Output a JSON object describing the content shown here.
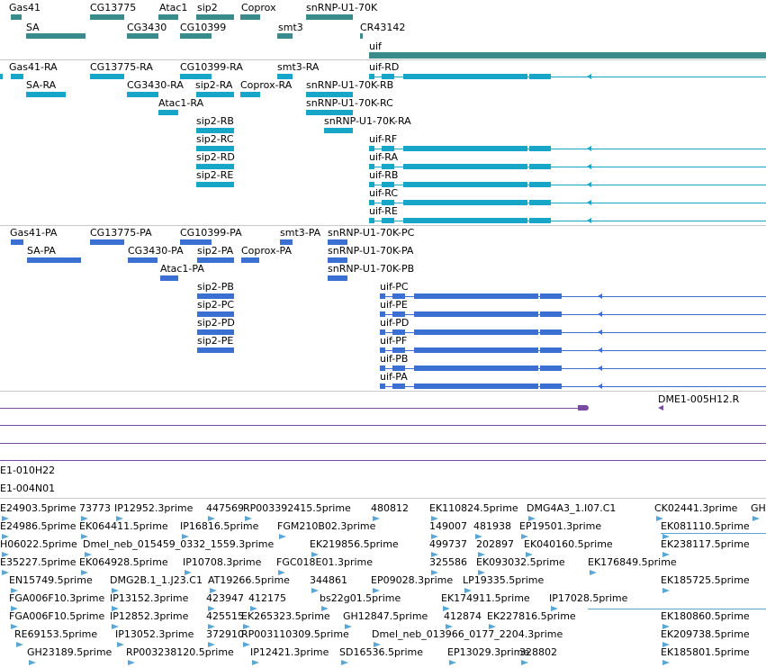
{
  "colors": {
    "gene": "#3a8c8c",
    "mrna": "#17a6c7",
    "protein": "#3b6fd1",
    "clone": "#7a4aa0",
    "est": "#5aa7d6",
    "separator": "#c8c8c8",
    "text": "#000000"
  },
  "genes": {
    "labels": [
      "Gas41",
      "CG13775",
      "Atac1",
      "sip2",
      "Coprox",
      "snRNP-U1-70K",
      "SA",
      "CG3430",
      "CG10399",
      "smt3",
      "CR43142",
      "uif"
    ]
  },
  "transcripts": {
    "labels": [
      "Gas41-RA",
      "CG13775-RA",
      "CG10399-RA",
      "smt3-RA",
      "uif-RD",
      "SA-RA",
      "CG3430-RA",
      "sip2-RA",
      "Coprox-RA",
      "snRNP-U1-70K-RB",
      "Atac1-RA",
      "snRNP-U1-70K-RC",
      "sip2-RB",
      "snRNP-U1-70K-RA",
      "sip2-RC",
      "uif-RF",
      "sip2-RD",
      "uif-RA",
      "sip2-RE",
      "uif-RB",
      "uif-RC",
      "uif-RE"
    ]
  },
  "proteins": {
    "labels": [
      "Gas41-PA",
      "CG13775-PA",
      "CG10399-PA",
      "smt3-PA",
      "snRNP-U1-70K-PC",
      "SA-PA",
      "CG3430-PA",
      "sip2-PA",
      "Coprox-PA",
      "snRNP-U1-70K-PA",
      "Atac1-PA",
      "snRNP-U1-70K-PB",
      "sip2-PB",
      "uif-PC",
      "sip2-PC",
      "uif-PE",
      "sip2-PD",
      "uif-PD",
      "sip2-PE",
      "uif-PF",
      "uif-PB",
      "uif-PA"
    ]
  },
  "clones": {
    "labels": [
      "DME1-005H12.R",
      "E1-010H22",
      "E1-004N01"
    ]
  },
  "ests": {
    "labels": [
      "E24903.5prime",
      "73773",
      "IP12952.3prime",
      "447569",
      "RP003392415.5prime",
      "480812",
      "EK110824.5prime",
      "DMG4A3_1.I07.C1",
      "CK02441.3prime",
      "GH",
      "E24986.5prime",
      "EK064411.5prime",
      "IP16816.5prime",
      "FGM210B02.3prime",
      "149007",
      "481938",
      "EP19501.3prime",
      "EK081110.5prime",
      "H06022.5prime",
      "Dmel_neb_015459_0332_1559.3prime",
      "EK219856.5prime",
      "499737",
      "202897",
      "EK040160.5prime",
      "EK238117.5prime",
      "E35227.5prime",
      "EK064928.5prime",
      "IP10708.3prime",
      "FGC018E01.3prime",
      "325586",
      "EK093032.5prime",
      "EK176849.5prime",
      "EN15749.5prime",
      "DMG2B.1_1.J23.C1",
      "AT19266.5prime",
      "344861",
      "EP09028.3prime",
      "LP19335.5prime",
      "EK185725.5prime",
      "FGA006F10.3prime",
      "IP13152.3prime",
      "423947",
      "412175",
      "bs22g01.5prime",
      "EK174911.5prime",
      "IP17028.5prime",
      "FGA006F10.5prime",
      "IP12852.3prime",
      "425515",
      "EK265323.5prime",
      "GH12847.5prime",
      "412874",
      "EK227816.5prime",
      "EK180860.5prime",
      "RE69153.5prime",
      "IP13052.3prime",
      "372910",
      "RP003110309.5prime",
      "Dmel_neb_013966_0177_2204.3prime",
      "EK209738.5prime",
      "GH23189.5prime",
      "RP003238120.5prime",
      "IP12421.3prime",
      "SD16536.5prime",
      "EP13029.3prime",
      "328802",
      "EK185801.5prime"
    ]
  }
}
